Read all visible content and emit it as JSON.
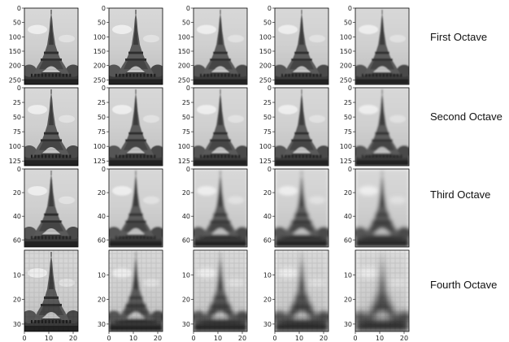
{
  "octaves": [
    {
      "label": "First Octave",
      "ytick_labels": [
        "0",
        "50",
        "100",
        "150",
        "200",
        "250"
      ],
      "ytick_values": [
        0,
        50,
        100,
        150,
        200,
        250
      ],
      "y_extent": 266,
      "blur_levels": [
        0,
        1,
        2,
        3,
        4
      ]
    },
    {
      "label": "Second Octave",
      "ytick_labels": [
        "0",
        "25",
        "50",
        "75",
        "100",
        "125"
      ],
      "ytick_values": [
        0,
        25,
        50,
        75,
        100,
        125
      ],
      "y_extent": 133,
      "blur_levels": [
        0,
        1,
        2,
        3,
        4
      ]
    },
    {
      "label": "Third Octave",
      "ytick_labels": [
        "0",
        "20",
        "40",
        "60"
      ],
      "ytick_values": [
        0,
        20,
        40,
        60
      ],
      "y_extent": 66,
      "blur_levels": [
        0,
        1,
        2,
        3,
        4
      ]
    },
    {
      "label": "Fourth Octave",
      "ytick_labels": [
        "10",
        "20",
        "30"
      ],
      "ytick_values": [
        10,
        20,
        30
      ],
      "y_extent": 33,
      "blur_levels": [
        0,
        1,
        2,
        3,
        4
      ],
      "pixelated": true
    }
  ],
  "xtick_labels": [
    "0",
    "10",
    "20"
  ],
  "xtick_values": [
    0,
    10,
    20
  ],
  "x_extent": 22,
  "subject": "eiffel-tower-grayscale"
}
